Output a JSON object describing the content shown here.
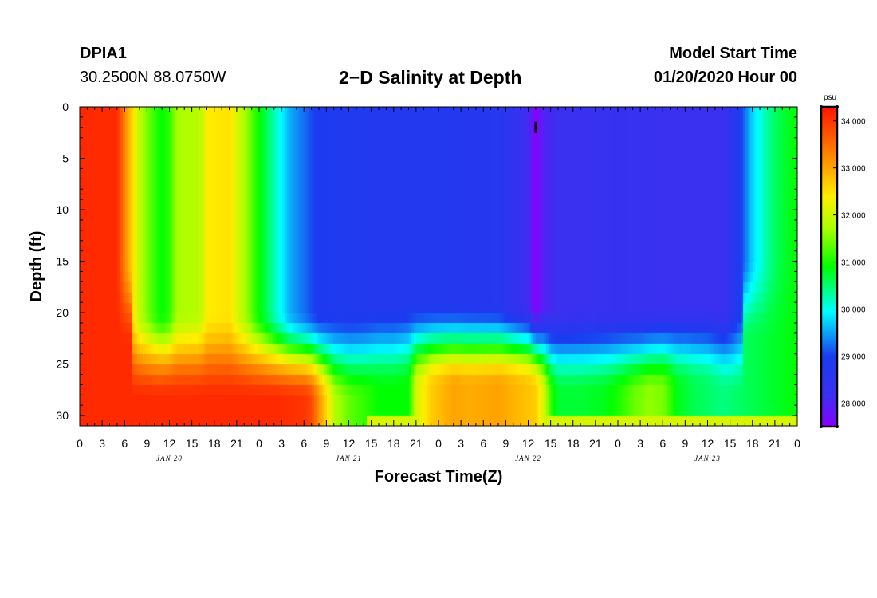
{
  "header": {
    "station_id": "DPIA1",
    "coordinates": "30.2500N 88.0750W",
    "title": "2−D Salinity at Depth",
    "model_start_label": "Model Start Time",
    "model_start_value": "01/20/2020 Hour 00"
  },
  "chart_data": {
    "type": "heatmap",
    "title": "2−D Salinity at Depth",
    "xlabel": "Forecast Time(Z)",
    "ylabel": "Depth (ft)",
    "xlim_hours": [
      0,
      96
    ],
    "ylim": [
      31,
      0
    ],
    "x_tick_hours": [
      0,
      3,
      6,
      9,
      12,
      15,
      18,
      21,
      24,
      27,
      30,
      33,
      36,
      39,
      42,
      45,
      48,
      51,
      54,
      57,
      60,
      63,
      66,
      69,
      72,
      75,
      78,
      81,
      84,
      87,
      90,
      93,
      96
    ],
    "x_tick_labels": [
      "0",
      "3",
      "6",
      "9",
      "12",
      "15",
      "18",
      "21",
      "0",
      "3",
      "6",
      "9",
      "12",
      "15",
      "18",
      "21",
      "0",
      "3",
      "6",
      "9",
      "12",
      "15",
      "18",
      "21",
      "0",
      "3",
      "6",
      "9",
      "12",
      "15",
      "18",
      "21",
      "0"
    ],
    "day_labels": [
      {
        "text": "JAN 20",
        "hour": 12
      },
      {
        "text": "JAN 21",
        "hour": 36
      },
      {
        "text": "JAN 22",
        "hour": 60
      },
      {
        "text": "JAN 23",
        "hour": 84
      }
    ],
    "y_ticks": [
      0,
      5,
      10,
      15,
      20,
      25,
      30
    ],
    "y_tick_labels": [
      "0",
      "5",
      "10",
      "15",
      "20",
      "25",
      "30"
    ],
    "colorbar": {
      "unit": "psu",
      "min": 27.5,
      "max": 34.3,
      "ticks": [
        28.0,
        29.0,
        30.0,
        31.0,
        32.0,
        33.0,
        34.0
      ],
      "tick_labels": [
        "28.000",
        "29.000",
        "30.000",
        "31.000",
        "32.000",
        "33.000",
        "34.000"
      ]
    },
    "bottom_depth_ft": [
      31.0,
      31.0,
      30.6,
      30.0,
      30.0,
      29.5,
      29.5,
      30.3,
      30.3,
      29.5,
      29.5,
      30.3,
      30.3
    ],
    "bottom_depth_hours": [
      0,
      36,
      38,
      40,
      42,
      44,
      60,
      63,
      75,
      81,
      84,
      87,
      96
    ],
    "surface_profile_hours": [
      0,
      5,
      6,
      8,
      10,
      11,
      12,
      13,
      16,
      17,
      20,
      22,
      24,
      28,
      32,
      40,
      48,
      56,
      60,
      61,
      62,
      64,
      72,
      80,
      86,
      88,
      90,
      92,
      94,
      96
    ],
    "surface_profile_psu": [
      34.1,
      34.1,
      33.2,
      31.8,
      31.2,
      31.0,
      31.2,
      31.7,
      31.8,
      32.3,
      32.4,
      31.7,
      31.0,
      29.6,
      28.9,
      28.8,
      28.8,
      28.7,
      28.1,
      27.5,
      28.0,
      28.2,
      28.3,
      28.2,
      28.2,
      28.8,
      29.8,
      30.4,
      30.8,
      31.0
    ],
    "bottom_profile_hours": [
      0,
      10,
      20,
      26,
      30,
      31,
      34,
      36,
      40,
      44,
      45,
      47,
      50,
      52,
      56,
      61,
      62,
      63,
      64,
      67,
      70,
      72,
      74,
      76,
      78,
      79,
      80,
      82,
      86,
      90,
      94,
      96
    ],
    "bottom_profile_psu": [
      34.1,
      34.1,
      34.1,
      34.1,
      34.0,
      33.8,
      31.8,
      31.4,
      31.0,
      31.0,
      32.0,
      32.6,
      33.0,
      32.9,
      33.0,
      32.6,
      32.0,
      31.2,
      30.8,
      30.8,
      30.9,
      31.1,
      31.4,
      31.6,
      31.5,
      31.2,
      30.9,
      30.7,
      30.5,
      30.7,
      30.9,
      31.0
    ],
    "marker": {
      "hour": 61,
      "depth_ft": 2
    }
  }
}
